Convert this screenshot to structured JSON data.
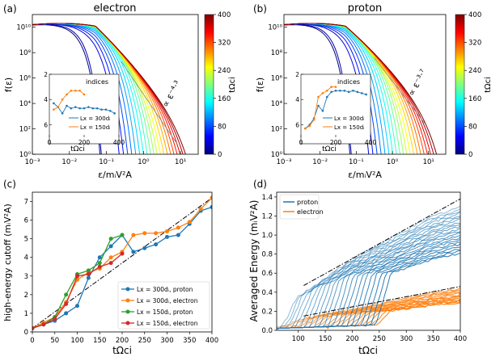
{
  "figure": {
    "panels": {
      "a": {
        "tag": "(a)",
        "title": "electron",
        "ylabel": "f(ε)",
        "xlabel": "ε/mᵢV²A",
        "slope": "∝ ε⁻⁴·³"
      },
      "b": {
        "tag": "(b)",
        "title": "proton",
        "ylabel": "f(ε)",
        "xlabel": "ε/mᵢV²A",
        "slope": "∝ ε⁻³·⁷"
      },
      "c": {
        "tag": "(c)"
      },
      "d": {
        "tag": "(d)"
      }
    },
    "colorbar": {
      "label": "tΩci",
      "ticks": [
        "0",
        "80",
        "160",
        "240",
        "320",
        "400"
      ]
    },
    "spectrum_xticks": [
      "10⁻³",
      "10⁻²",
      "10⁻¹",
      "10⁰",
      "10¹"
    ],
    "spectrum_yticks": [
      "10⁰",
      "10²",
      "10⁴",
      "10⁶",
      "10⁸",
      "10¹⁰"
    ],
    "inset": {
      "title": "indices",
      "xlabel": "tΩci",
      "yticks": [
        "2",
        "4",
        "6"
      ],
      "xticks": [
        "0",
        "200",
        "400"
      ],
      "legend": [
        "Lx = 300dᵢ",
        "Lx = 150dᵢ"
      ]
    }
  },
  "chart_data": [
    {
      "type": "line",
      "title": "electron",
      "xlabel": "ε/mᵢV²A",
      "ylabel": "f(ε)",
      "xscale": "log",
      "yscale": "log",
      "xlim": [
        0.001,
        30
      ],
      "ylim": [
        1,
        100000000000.0
      ],
      "series_description": "energy spectra colored by tΩci from 0 to 400",
      "annotation": "∝ ε^-4.3",
      "inset": {
        "title": "indices",
        "xlabel": "tΩci",
        "ylim": [
          2,
          7
        ],
        "xlim": [
          0,
          400
        ],
        "series": [
          {
            "name": "Lx = 300dᵢ",
            "x": [
              25,
              50,
              75,
              100,
              125,
              150,
              175,
              200,
              225,
              250,
              275,
              300,
              325,
              350,
              375
            ],
            "y": [
              4.3,
              4.6,
              5.1,
              4.5,
              4.7,
              4.6,
              4.7,
              4.7,
              4.6,
              4.7,
              4.7,
              4.8,
              4.8,
              4.9,
              5.1
            ]
          },
          {
            "name": "Lx = 150dᵢ",
            "x": [
              25,
              50,
              75,
              100,
              125,
              150,
              175,
              200
            ],
            "y": [
              4.8,
              4.6,
              4.0,
              3.6,
              3.3,
              3.3,
              3.3,
              3.6
            ]
          }
        ]
      }
    },
    {
      "type": "line",
      "title": "proton",
      "xlabel": "ε/mᵢV²A",
      "ylabel": "f(ε)",
      "xscale": "log",
      "yscale": "log",
      "xlim": [
        0.001,
        30
      ],
      "ylim": [
        1,
        100000000000.0
      ],
      "series_description": "energy spectra colored by tΩci from 0 to 400",
      "annotation": "∝ ε^-3.7",
      "inset": {
        "title": "indices",
        "xlabel": "tΩci",
        "ylim": [
          2,
          7
        ],
        "xlim": [
          0,
          400
        ],
        "series": [
          {
            "name": "Lx = 300dᵢ",
            "x": [
              25,
              50,
              75,
              100,
              125,
              150,
              175,
              200,
              225,
              250,
              275,
              300,
              325,
              350,
              375
            ],
            "y": [
              6.3,
              6.0,
              5.5,
              4.5,
              4.9,
              3.8,
              3.4,
              3.3,
              3.3,
              3.3,
              3.4,
              3.3,
              3.4,
              3.5,
              3.6
            ]
          },
          {
            "name": "Lx = 150dᵢ",
            "x": [
              25,
              50,
              75,
              100,
              125,
              150,
              175,
              200
            ],
            "y": [
              6.3,
              6.1,
              5.6,
              3.8,
              3.5,
              3.3,
              3.0,
              3.0
            ]
          }
        ]
      }
    },
    {
      "type": "line",
      "xlabel": "tΩci",
      "ylabel": "high-energy cutoff (mᵢV²A)",
      "xlim": [
        0,
        400
      ],
      "ylim": [
        0,
        7.5
      ],
      "xticks": [
        "0",
        "50",
        "100",
        "150",
        "200",
        "250",
        "300",
        "350",
        "400"
      ],
      "yticks": [
        "0",
        "1",
        "2",
        "3",
        "4",
        "5",
        "6",
        "7"
      ],
      "series": [
        {
          "name": "Lx = 300dᵢ, proton",
          "color": "#1f77b4",
          "x": [
            0,
            25,
            50,
            75,
            100,
            125,
            150,
            175,
            200,
            225,
            250,
            275,
            300,
            325,
            350,
            375,
            400
          ],
          "y": [
            0.2,
            0.4,
            0.6,
            1.0,
            1.4,
            2.9,
            4.0,
            4.6,
            5.2,
            4.3,
            4.5,
            4.7,
            5.1,
            5.2,
            5.8,
            6.5,
            6.7
          ]
        },
        {
          "name": "Lx = 300dᵢ, electron",
          "color": "#ff7f0e",
          "x": [
            0,
            25,
            50,
            75,
            100,
            125,
            150,
            175,
            200,
            225,
            250,
            275,
            300,
            325,
            350,
            375,
            400
          ],
          "y": [
            0.2,
            0.5,
            0.8,
            1.6,
            2.8,
            3.2,
            3.4,
            4.0,
            4.3,
            5.2,
            5.3,
            5.3,
            5.4,
            5.6,
            5.9,
            6.6,
            7.2
          ]
        },
        {
          "name": "Lx = 150dᵢ, proton",
          "color": "#2ca02c",
          "x": [
            0,
            25,
            50,
            75,
            100,
            125,
            150,
            175,
            200
          ],
          "y": [
            0.2,
            0.4,
            0.8,
            2.0,
            3.1,
            3.3,
            3.7,
            5.0,
            5.2
          ]
        },
        {
          "name": "Lx = 150dᵢ, electron",
          "color": "#d62728",
          "x": [
            0,
            25,
            50,
            75,
            100,
            125,
            150,
            175,
            200
          ],
          "y": [
            0.2,
            0.4,
            0.7,
            1.5,
            3.0,
            3.1,
            3.5,
            3.7,
            4.2
          ]
        }
      ],
      "reference_line": {
        "style": "dash-dot",
        "x": [
          0,
          400
        ],
        "y": [
          0.2,
          7.2
        ]
      },
      "legend_position": "bottom-right"
    },
    {
      "type": "line",
      "xlabel": "tΩci",
      "ylabel": "Averaged Energy (mᵢV²A)",
      "xlim": [
        60,
        400
      ],
      "ylim": [
        0,
        1.45
      ],
      "xticks": [
        "100",
        "150",
        "200",
        "250",
        "300",
        "350",
        "400"
      ],
      "yticks": [
        "0.0",
        "0.2",
        "0.4",
        "0.6",
        "0.8",
        "1.0",
        "1.2",
        "1.4"
      ],
      "series": [
        {
          "name": "proton",
          "color": "#1f77b4",
          "x": [
            60,
            100,
            150,
            200,
            250,
            300,
            350,
            400
          ],
          "y": [
            0.03,
            0.35,
            0.55,
            0.75,
            0.9,
            1.05,
            1.2,
            1.3
          ]
        },
        {
          "name": "electron",
          "color": "#ff7f0e",
          "x": [
            60,
            100,
            150,
            200,
            250,
            300,
            350,
            400
          ],
          "y": [
            0.02,
            0.1,
            0.17,
            0.22,
            0.28,
            0.34,
            0.4,
            0.44
          ]
        }
      ],
      "reference_lines": [
        {
          "style": "dash-dot",
          "x": [
            110,
            400
          ],
          "y": [
            0.47,
            1.38
          ]
        },
        {
          "style": "dash-dot",
          "x": [
            110,
            400
          ],
          "y": [
            0.15,
            0.46
          ]
        }
      ],
      "legend_position": "top-left"
    }
  ]
}
